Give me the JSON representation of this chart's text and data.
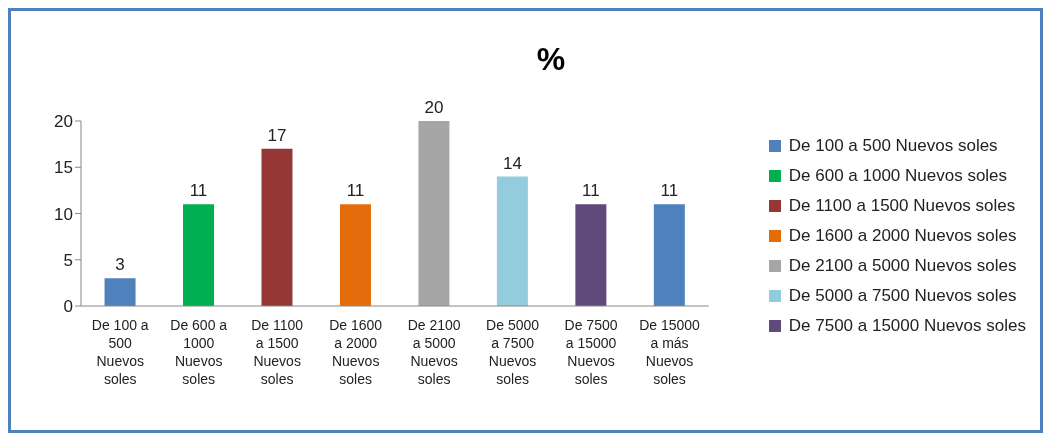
{
  "chart_data": {
    "type": "bar",
    "title": "%",
    "stacked": true,
    "categories": [
      "De 100 a 500 Nuevos soles",
      "De 600 a 1000 Nuevos soles",
      "De 1100 a 1500 Nuevos soles",
      "De 1600 a 2000 Nuevos soles",
      "De 2100 a 5000 Nuevos soles",
      "De 5000 a 7500 Nuevos soles",
      "De 7500 a 15000 Nuevos soles",
      "De 15000 a más Nuevos soles"
    ],
    "series": [
      {
        "name": "De 100 a 500 Nuevos soles",
        "color": "#4f81bd",
        "values": [
          3,
          null,
          null,
          null,
          null,
          null,
          null,
          null
        ]
      },
      {
        "name": "De 600 a 1000 Nuevos soles",
        "color": "#00b050",
        "values": [
          null,
          11,
          null,
          null,
          null,
          null,
          null,
          null
        ]
      },
      {
        "name": "De 1100 a 1500 Nuevos soles",
        "color": "#953735",
        "values": [
          null,
          null,
          17,
          null,
          null,
          null,
          null,
          null
        ]
      },
      {
        "name": "De 1600 a 2000 Nuevos soles",
        "color": "#e46c0a",
        "values": [
          null,
          null,
          null,
          11,
          null,
          null,
          null,
          null
        ]
      },
      {
        "name": "De 2100 a 5000 Nuevos soles",
        "color": "#a6a6a6",
        "values": [
          null,
          null,
          null,
          null,
          20,
          null,
          null,
          null
        ]
      },
      {
        "name": "De 5000 a 7500 Nuevos soles",
        "color": "#93cddd",
        "values": [
          null,
          null,
          null,
          null,
          null,
          14,
          null,
          null
        ]
      },
      {
        "name": "De 7500 a 15000 Nuevos soles",
        "color": "#604a7b",
        "values": [
          null,
          null,
          null,
          null,
          null,
          null,
          11,
          null
        ]
      },
      {
        "color": "#4f81bd",
        "values": [
          null,
          null,
          null,
          null,
          null,
          null,
          null,
          11
        ]
      }
    ],
    "ylim": [
      0,
      20
    ],
    "yticks": [
      0,
      5,
      10,
      15,
      20
    ],
    "data_labels": true,
    "legend": "right"
  }
}
